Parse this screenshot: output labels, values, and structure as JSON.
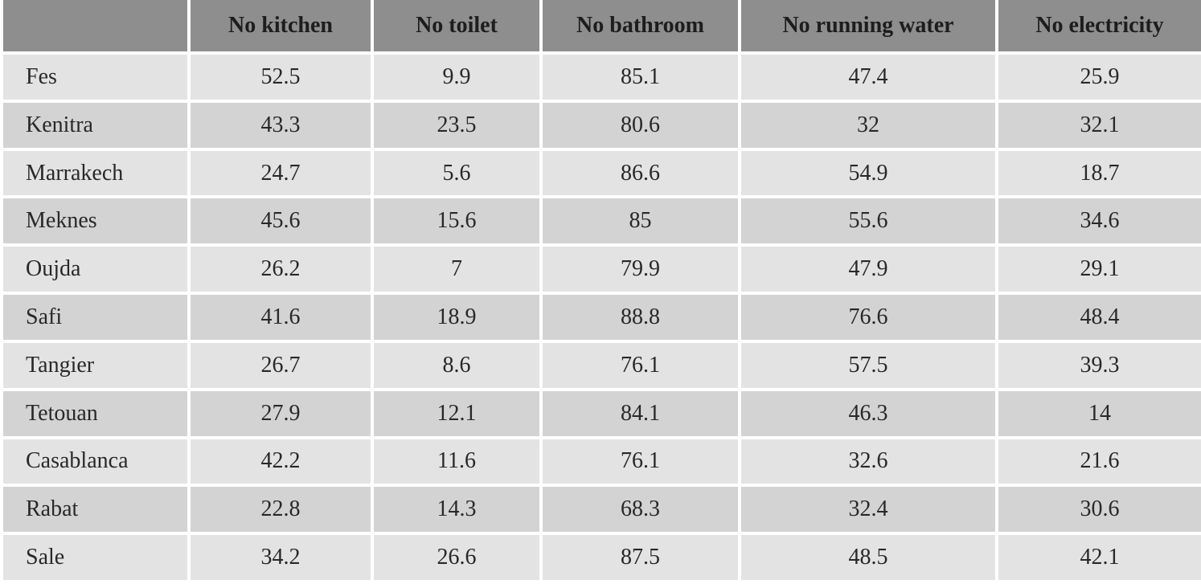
{
  "table": {
    "columns": [
      "",
      "No kitchen",
      "No toilet",
      "No bathroom",
      "No running water",
      "No electricity"
    ],
    "rows": [
      {
        "city": "Fes",
        "values": [
          "52.5",
          "9.9",
          "85.1",
          "47.4",
          "25.9"
        ]
      },
      {
        "city": "Kenitra",
        "values": [
          "43.3",
          "23.5",
          "80.6",
          "32",
          "32.1"
        ]
      },
      {
        "city": "Marrakech",
        "values": [
          "24.7",
          "5.6",
          "86.6",
          "54.9",
          "18.7"
        ]
      },
      {
        "city": "Meknes",
        "values": [
          "45.6",
          "15.6",
          "85",
          "55.6",
          "34.6"
        ]
      },
      {
        "city": "Oujda",
        "values": [
          "26.2",
          "7",
          "79.9",
          "47.9",
          "29.1"
        ]
      },
      {
        "city": "Safi",
        "values": [
          "41.6",
          "18.9",
          "88.8",
          "76.6",
          "48.4"
        ]
      },
      {
        "city": "Tangier",
        "values": [
          "26.7",
          "8.6",
          "76.1",
          "57.5",
          "39.3"
        ]
      },
      {
        "city": "Tetouan",
        "values": [
          "27.9",
          "12.1",
          "84.1",
          "46.3",
          "14"
        ]
      },
      {
        "city": "Casablanca",
        "values": [
          "42.2",
          "11.6",
          "76.1",
          "32.6",
          "21.6"
        ]
      },
      {
        "city": "Rabat",
        "values": [
          "22.8",
          "14.3",
          "68.3",
          "32.4",
          "30.6"
        ]
      },
      {
        "city": "Sale",
        "values": [
          "34.2",
          "26.6",
          "87.5",
          "48.5",
          "42.1"
        ]
      }
    ]
  },
  "colors": {
    "header_bg": "#8e8e8e",
    "row_light_bg": "#e3e3e3",
    "row_dark_bg": "#d3d3d3",
    "gap": "#ffffff",
    "header_text": "#1d1d1d",
    "body_text": "#2b2728"
  },
  "chart_data": {
    "type": "table",
    "title": "",
    "columns": [
      "No kitchen",
      "No toilet",
      "No bathroom",
      "No running water",
      "No electricity"
    ],
    "categories": [
      "Fes",
      "Kenitra",
      "Marrakech",
      "Meknes",
      "Oujda",
      "Safi",
      "Tangier",
      "Tetouan",
      "Casablanca",
      "Rabat",
      "Sale"
    ],
    "series": [
      {
        "name": "No kitchen",
        "values": [
          52.5,
          43.3,
          24.7,
          45.6,
          26.2,
          41.6,
          26.7,
          27.9,
          42.2,
          22.8,
          34.2
        ]
      },
      {
        "name": "No toilet",
        "values": [
          9.9,
          23.5,
          5.6,
          15.6,
          7,
          18.9,
          8.6,
          12.1,
          11.6,
          14.3,
          26.6
        ]
      },
      {
        "name": "No bathroom",
        "values": [
          85.1,
          80.6,
          86.6,
          85,
          79.9,
          88.8,
          76.1,
          84.1,
          76.1,
          68.3,
          87.5
        ]
      },
      {
        "name": "No running water",
        "values": [
          47.4,
          32,
          54.9,
          55.6,
          47.9,
          76.6,
          57.5,
          46.3,
          32.6,
          32.4,
          48.5
        ]
      },
      {
        "name": "No electricity",
        "values": [
          25.9,
          32.1,
          18.7,
          34.6,
          29.1,
          48.4,
          39.3,
          14,
          21.6,
          30.6,
          42.1
        ]
      }
    ]
  }
}
